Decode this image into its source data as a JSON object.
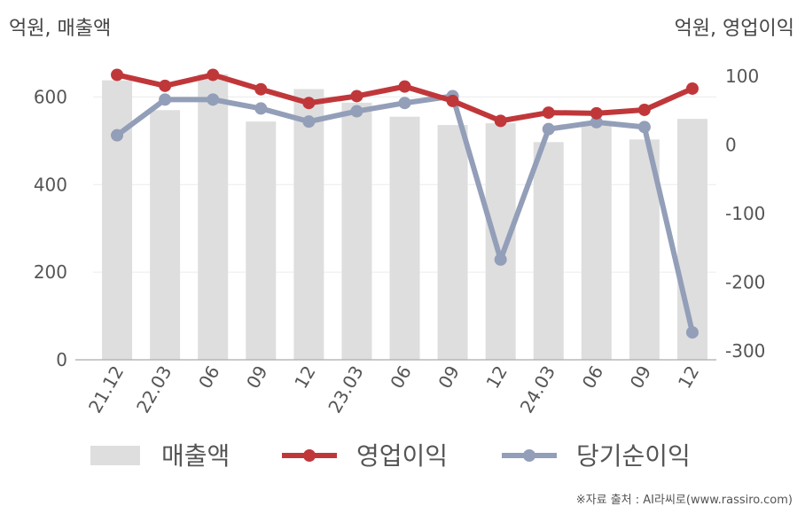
{
  "units": {
    "left": "억원, 매출액",
    "right": "억원, 영업이익"
  },
  "source": "※자료 출처 : AI라씨로(www.rassiro.com)",
  "colors": {
    "bar": "#dedede",
    "operating_profit": "#c0373a",
    "net_income": "#939eb8",
    "grid": "#ececec",
    "axis": "#aaaaaa"
  },
  "chart_data": {
    "type": "bar+line",
    "categories": [
      "21.12",
      "22.03",
      "06",
      "09",
      "12",
      "23.03",
      "06",
      "09",
      "12",
      "24.03",
      "06",
      "09",
      "12"
    ],
    "left_axis": {
      "ticks": [
        "0",
        "200",
        "400",
        "600"
      ],
      "ylim": [
        0,
        700
      ]
    },
    "right_axis": {
      "ticks": [
        "-300",
        "-200",
        "-100",
        "0",
        "100"
      ],
      "ylim": [
        -320,
        120
      ]
    },
    "series": [
      {
        "name": "매출액",
        "type": "bar",
        "axis": "left",
        "values": [
          638,
          570,
          652,
          544,
          618,
          587,
          555,
          536,
          540,
          497,
          544,
          503,
          550
        ]
      },
      {
        "name": "영업이익",
        "type": "line",
        "axis": "right",
        "values": [
          102,
          86,
          102,
          81,
          61,
          71,
          85,
          64,
          35,
          47,
          46,
          51,
          82
        ]
      },
      {
        "name": "당기순이익",
        "type": "line",
        "axis": "right",
        "values": [
          14,
          66,
          66,
          53,
          34,
          49,
          61,
          71,
          -167,
          23,
          33,
          26,
          -273
        ]
      }
    ],
    "legend": [
      "매출액",
      "영업이익",
      "당기순이익"
    ],
    "legend_position": "bottom",
    "grid": true
  }
}
